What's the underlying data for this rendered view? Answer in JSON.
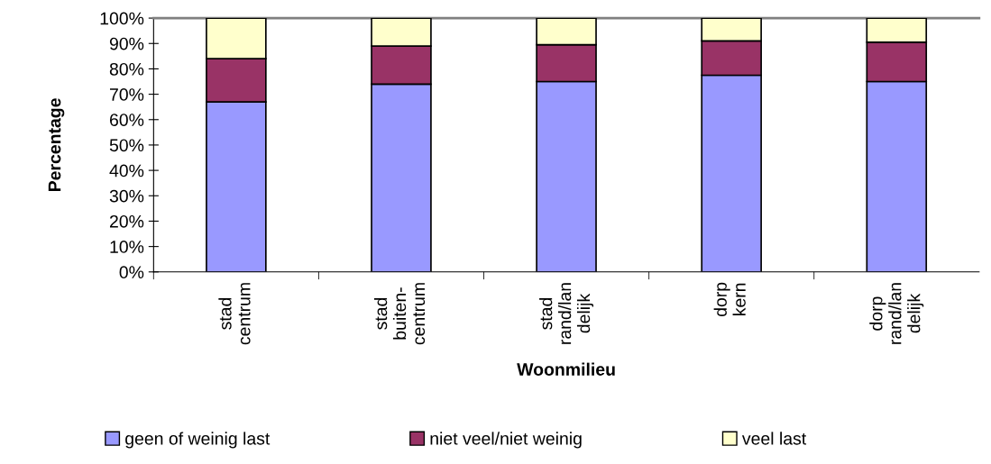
{
  "chart_data": {
    "type": "bar",
    "stacked": true,
    "xlabel": "Woonmilieu",
    "ylabel": "Percentage",
    "categories": [
      "stad\ncentrum",
      "stad\nbuiten-\ncentrum",
      "stad\nrand/lan\ndelijk",
      "dorp\nkern",
      "dorp\nrand/lan\ndelijk"
    ],
    "series": [
      {
        "name": "geen of weinig last",
        "color": "#9999ff",
        "values": [
          67,
          74,
          75,
          77.5,
          75
        ]
      },
      {
        "name": "niet veel/niet weinig",
        "color": "#993366",
        "values": [
          17,
          15,
          14.5,
          13.5,
          15.5
        ]
      },
      {
        "name": "veel last",
        "color": "#ffffcc",
        "values": [
          16,
          11,
          10.5,
          9,
          9.5
        ]
      }
    ],
    "ylim": [
      0,
      100
    ],
    "yticks": [
      {
        "value": 0,
        "label": "0%"
      },
      {
        "value": 10,
        "label": "10%"
      },
      {
        "value": 20,
        "label": "20%"
      },
      {
        "value": 30,
        "label": "30%"
      },
      {
        "value": 40,
        "label": "40%"
      },
      {
        "value": 50,
        "label": "50%"
      },
      {
        "value": 60,
        "label": "60%"
      },
      {
        "value": 70,
        "label": "70%"
      },
      {
        "value": 80,
        "label": "80%"
      },
      {
        "value": 90,
        "label": "90%"
      },
      {
        "value": 100,
        "label": "100%"
      }
    ],
    "grid": false,
    "legend": "bottom"
  }
}
